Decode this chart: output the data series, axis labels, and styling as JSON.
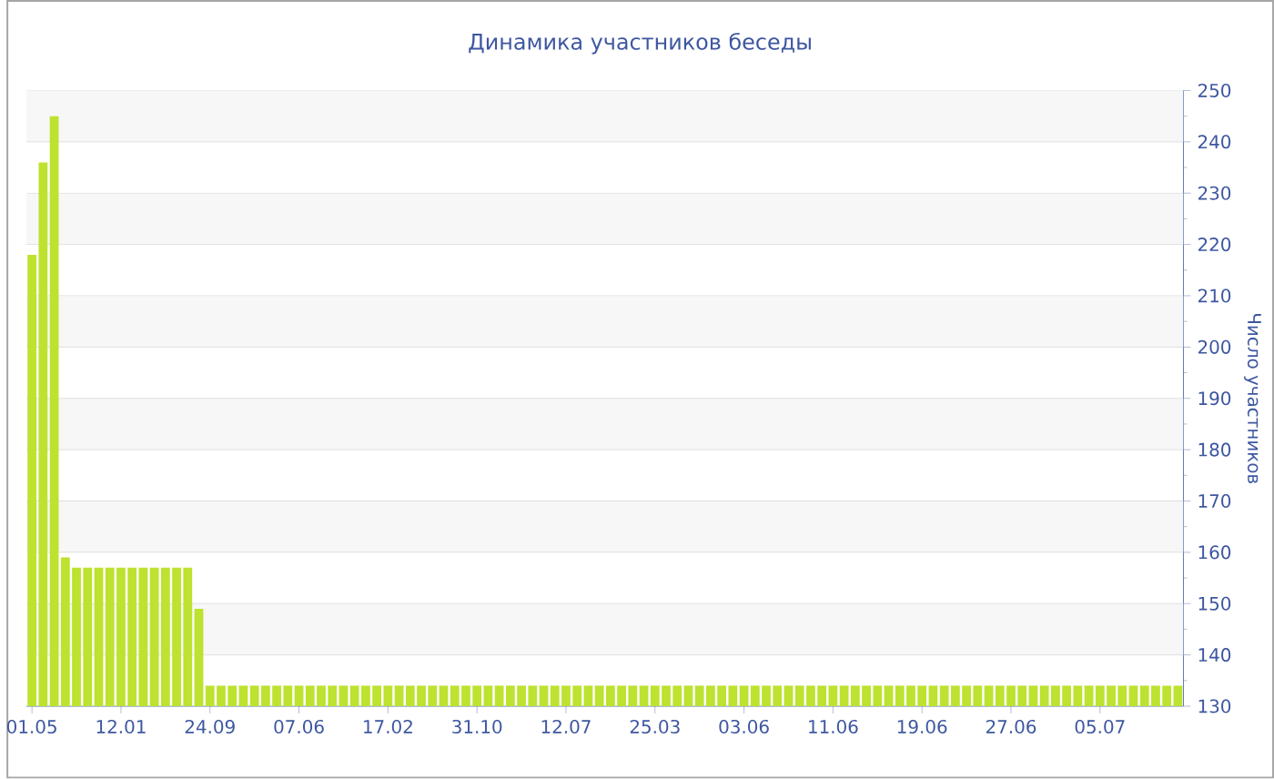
{
  "chart_data": {
    "type": "bar",
    "title": "Динамика участников беседы",
    "ylabel": "Число участников",
    "categories": [
      "01.05",
      null,
      null,
      null,
      null,
      null,
      null,
      null,
      "12.01",
      null,
      null,
      null,
      null,
      null,
      null,
      null,
      "24.09",
      null,
      null,
      null,
      null,
      null,
      null,
      null,
      "07.06",
      null,
      null,
      null,
      null,
      null,
      null,
      null,
      "17.02",
      null,
      null,
      null,
      null,
      null,
      null,
      null,
      "31.10",
      null,
      null,
      null,
      null,
      null,
      null,
      null,
      "12.07",
      null,
      null,
      null,
      null,
      null,
      null,
      null,
      "25.03",
      null,
      null,
      null,
      null,
      null,
      null,
      null,
      "03.06",
      null,
      null,
      null,
      null,
      null,
      null,
      null,
      "11.06",
      null,
      null,
      null,
      null,
      null,
      null,
      null,
      "19.06",
      null,
      null,
      null,
      null,
      null,
      null,
      null,
      "27.06",
      null,
      null,
      null,
      null,
      null,
      null,
      null,
      "05.07",
      null,
      null,
      null,
      null,
      null,
      null,
      null
    ],
    "values": [
      218,
      236,
      245,
      159,
      157,
      157,
      157,
      157,
      157,
      157,
      157,
      157,
      157,
      157,
      157,
      149,
      134,
      134,
      134,
      134,
      134,
      134,
      134,
      134,
      134,
      134,
      134,
      134,
      134,
      134,
      134,
      134,
      134,
      134,
      134,
      134,
      134,
      134,
      134,
      134,
      134,
      134,
      134,
      134,
      134,
      134,
      134,
      134,
      134,
      134,
      134,
      134,
      134,
      134,
      134,
      134,
      134,
      134,
      134,
      134,
      134,
      134,
      134,
      134,
      134,
      134,
      134,
      134,
      134,
      134,
      134,
      134,
      134,
      134,
      134,
      134,
      134,
      134,
      134,
      134,
      134,
      134,
      134,
      134,
      134,
      134,
      134,
      134,
      134,
      134,
      134,
      134,
      134,
      134,
      134,
      134,
      134,
      134,
      134,
      134,
      134,
      134,
      134,
      134
    ],
    "color": "#bde22f",
    "ylim": [
      130,
      250
    ],
    "yticks": [
      130,
      140,
      150,
      160,
      170,
      180,
      190,
      200,
      210,
      220,
      230,
      240,
      250
    ],
    "grid": "y"
  }
}
